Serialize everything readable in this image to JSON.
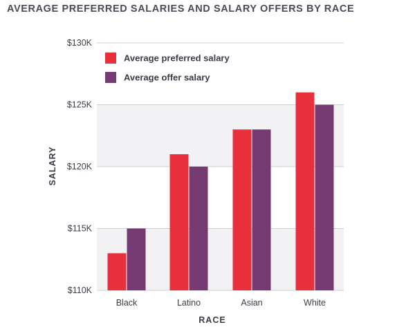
{
  "chart_data": {
    "type": "bar",
    "title": "AVERAGE PREFERRED SALARIES AND SALARY OFFERS BY RACE",
    "xlabel": "RACE",
    "ylabel": "SALARY",
    "categories": [
      "Black",
      "Latino",
      "Asian",
      "White"
    ],
    "series": [
      {
        "name": "Average preferred salary",
        "color": "#e8303d",
        "values": [
          113,
          121,
          123,
          126
        ]
      },
      {
        "name": "Average offer salary",
        "color": "#763a73",
        "values": [
          115,
          120,
          123,
          125
        ]
      }
    ],
    "ylim": [
      110,
      130
    ],
    "yticks": [
      110,
      115,
      120,
      125,
      130
    ],
    "ytick_labels": [
      "$110K",
      "$115K",
      "$120K",
      "$125K",
      "$130K"
    ],
    "y_unit": "thousands USD",
    "legend": "top-left",
    "grid": true
  }
}
